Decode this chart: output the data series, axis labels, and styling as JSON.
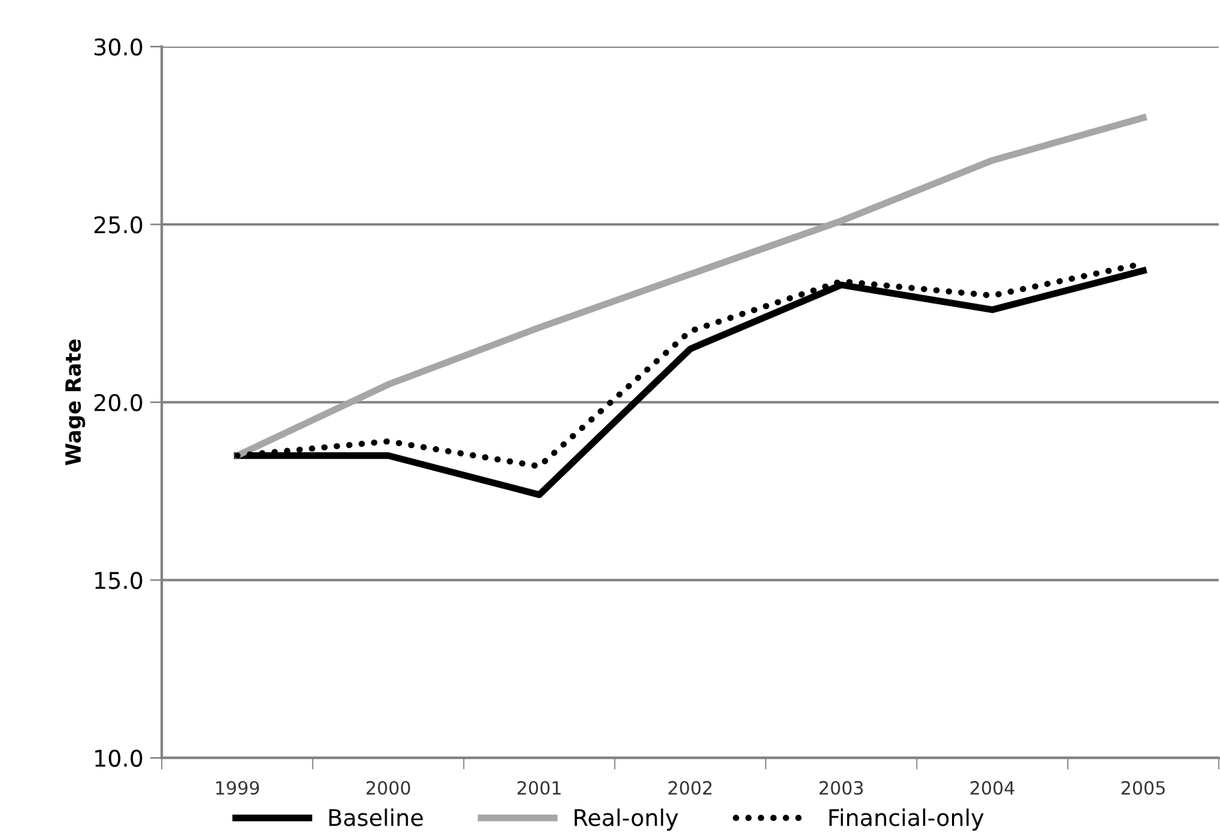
{
  "chart_data": {
    "type": "line",
    "ylabel": "Wage Rate",
    "categories": [
      "1999",
      "2000",
      "2001",
      "2002",
      "2003",
      "2004",
      "2005"
    ],
    "series": [
      {
        "name": "Baseline",
        "color": "#000000",
        "line_style": "solid",
        "values": [
          18.5,
          18.5,
          17.4,
          21.5,
          23.3,
          22.6,
          23.7
        ]
      },
      {
        "name": "Real-only",
        "color": "#a6a6a6",
        "line_style": "solid",
        "values": [
          18.5,
          20.5,
          22.1,
          23.6,
          25.1,
          26.8,
          28.0
        ]
      },
      {
        "name": "Financial-only",
        "color": "#000000",
        "line_style": "dotted",
        "values": [
          18.5,
          18.9,
          18.2,
          22.0,
          23.4,
          23.0,
          23.9
        ]
      }
    ],
    "ylim": [
      10,
      30
    ],
    "yticks": [
      {
        "value": 10,
        "label": "10.0"
      },
      {
        "value": 15,
        "label": "15.0"
      },
      {
        "value": 20,
        "label": "20.0"
      },
      {
        "value": 25,
        "label": "25.0"
      },
      {
        "value": 30,
        "label": "30.0"
      }
    ],
    "grid": "y",
    "legend": "bottom",
    "marker": "none"
  }
}
